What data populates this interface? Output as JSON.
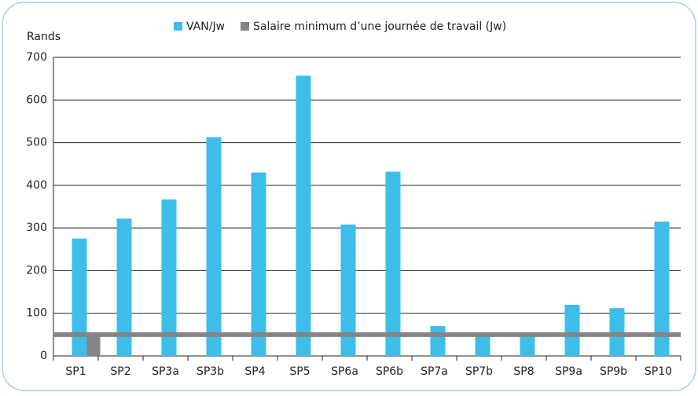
{
  "chart_data": {
    "type": "bar",
    "y_label": "Rands",
    "categories": [
      "SP1",
      "SP2",
      "SP3a",
      "SP3b",
      "SP4",
      "SP5",
      "SP6a",
      "SP6b",
      "SP7a",
      "SP7b",
      "SP8",
      "SP9a",
      "SP9b",
      "SP10"
    ],
    "series": [
      {
        "name": "VAN/Jw",
        "color": "#3dbdea",
        "values": [
          275,
          322,
          367,
          513,
          430,
          657,
          308,
          432,
          70,
          50,
          50,
          120,
          112,
          315
        ]
      },
      {
        "name": "Salaire minimum d’une journée de travail (Jw)",
        "color": "#858585",
        "values": [
          50,
          null,
          null,
          null,
          null,
          null,
          null,
          null,
          null,
          null,
          null,
          null,
          null,
          null
        ]
      }
    ],
    "ylim": [
      0,
      700
    ],
    "yticks": [
      0,
      100,
      200,
      300,
      400,
      500,
      600,
      700
    ],
    "grid": true,
    "legend": "top"
  }
}
